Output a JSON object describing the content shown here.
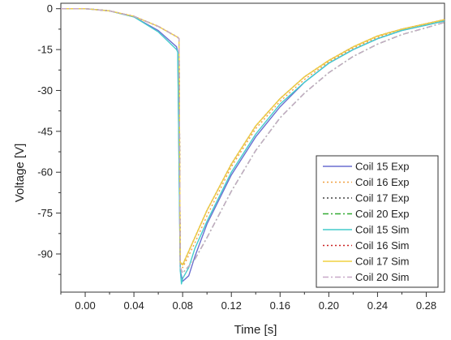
{
  "chart_data": {
    "type": "line",
    "title": "",
    "xlabel": "Time [s]",
    "ylabel": "Voltage [V]",
    "xlim": [
      -0.02,
      0.295
    ],
    "ylim": [
      -104,
      2
    ],
    "xticks": [
      0.0,
      0.04,
      0.08,
      0.12,
      0.16,
      0.2,
      0.24,
      0.28
    ],
    "xtick_labels": [
      "0.00",
      "0.04",
      "0.08",
      "0.12",
      "0.16",
      "0.20",
      "0.24",
      "0.28"
    ],
    "yticks": [
      0,
      -15,
      -30,
      -45,
      -60,
      -75,
      -90
    ],
    "ytick_labels": [
      "0",
      "-15",
      "-30",
      "-45",
      "-60",
      "-75",
      "-90"
    ],
    "grid": false,
    "legend_position": "bottom-right",
    "series": [
      {
        "name": "Coil 15 Exp",
        "color": "#6a6fd0",
        "dash": "solid",
        "x": [
          -0.02,
          0.0,
          0.02,
          0.04,
          0.06,
          0.075,
          0.076,
          0.078,
          0.08,
          0.085,
          0.09,
          0.1,
          0.12,
          0.14,
          0.16,
          0.18,
          0.2,
          0.22,
          0.24,
          0.26,
          0.28,
          0.295
        ],
        "y": [
          0,
          0,
          -0.8,
          -3,
          -8,
          -14,
          -16,
          -96,
          -100,
          -98,
          -91,
          -79,
          -61,
          -47,
          -36,
          -27,
          -20,
          -15,
          -11,
          -8,
          -6,
          -4.5
        ]
      },
      {
        "name": "Coil 16 Exp",
        "color": "#f0a040",
        "dash": "dot",
        "x": [
          -0.02,
          0.0,
          0.02,
          0.04,
          0.06,
          0.076,
          0.077,
          0.078,
          0.08,
          0.09,
          0.1,
          0.12,
          0.14,
          0.16,
          0.18,
          0.2,
          0.22,
          0.24,
          0.26,
          0.28,
          0.295
        ],
        "y": [
          0,
          0,
          -0.8,
          -2.8,
          -6.5,
          -10.5,
          -11,
          -93,
          -95,
          -86,
          -76,
          -58,
          -44,
          -34,
          -26,
          -19.5,
          -14.5,
          -10.5,
          -7.5,
          -5.5,
          -4
        ]
      },
      {
        "name": "Coil 17 Exp",
        "color": "#444444",
        "dash": "dot",
        "x": [
          -0.02,
          0.0,
          0.02,
          0.04,
          0.06,
          0.076,
          0.077,
          0.078,
          0.08,
          0.09,
          0.1,
          0.12,
          0.14,
          0.16,
          0.18,
          0.2,
          0.22,
          0.24,
          0.26,
          0.28,
          0.295
        ],
        "y": [
          0,
          0,
          -0.8,
          -2.8,
          -6.5,
          -10.5,
          -11,
          -93,
          -94,
          -84,
          -74,
          -57,
          -43,
          -33,
          -25,
          -19,
          -14,
          -10,
          -7.5,
          -5.5,
          -4
        ]
      },
      {
        "name": "Coil 20 Exp",
        "color": "#33aa33",
        "dash": "dashdot",
        "x": [
          -0.02,
          0.0,
          0.02,
          0.04,
          0.06,
          0.076,
          0.077,
          0.078,
          0.08,
          0.09,
          0.1,
          0.12,
          0.14,
          0.16,
          0.18,
          0.2,
          0.22,
          0.24,
          0.26,
          0.28,
          0.295
        ],
        "y": [
          0,
          0,
          -0.8,
          -2.8,
          -6.5,
          -10.5,
          -11,
          -95,
          -97,
          -92,
          -84,
          -67,
          -52,
          -40,
          -31,
          -23.5,
          -17.5,
          -13,
          -9.5,
          -7,
          -5
        ]
      },
      {
        "name": "Coil 15 Sim",
        "color": "#44cccc",
        "dash": "solid",
        "x": [
          -0.02,
          0.0,
          0.02,
          0.04,
          0.06,
          0.075,
          0.076,
          0.078,
          0.079,
          0.08,
          0.085,
          0.09,
          0.1,
          0.12,
          0.14,
          0.16,
          0.18,
          0.2,
          0.22,
          0.24,
          0.26,
          0.28,
          0.295
        ],
        "y": [
          0,
          0,
          -0.8,
          -3,
          -8.5,
          -15,
          -16,
          -96,
          -101,
          -99,
          -95,
          -88,
          -78,
          -60,
          -46,
          -35,
          -27,
          -20,
          -15,
          -11,
          -8,
          -6,
          -4.5
        ]
      },
      {
        "name": "Coil 16 Sim",
        "color": "#cc2222",
        "dash": "dot",
        "x": [
          -0.02,
          0.0,
          0.02,
          0.04,
          0.06,
          0.076,
          0.077,
          0.078,
          0.08,
          0.09,
          0.1,
          0.12,
          0.14,
          0.16,
          0.18,
          0.2,
          0.22,
          0.24,
          0.26,
          0.28,
          0.295
        ],
        "y": [
          0,
          0,
          -0.8,
          -2.8,
          -6.5,
          -10.5,
          -11,
          -94,
          -94,
          -84,
          -74,
          -57,
          -43,
          -33,
          -25,
          -19,
          -14,
          -10,
          -7.5,
          -5.5,
          -4
        ]
      },
      {
        "name": "Coil 17 Sim",
        "color": "#f0d040",
        "dash": "solid",
        "x": [
          -0.02,
          0.0,
          0.02,
          0.04,
          0.06,
          0.076,
          0.077,
          0.078,
          0.08,
          0.09,
          0.1,
          0.12,
          0.14,
          0.16,
          0.18,
          0.2,
          0.22,
          0.24,
          0.26,
          0.28,
          0.295
        ],
        "y": [
          0,
          0,
          -0.8,
          -2.8,
          -6.5,
          -10.5,
          -11,
          -93,
          -94,
          -84,
          -74,
          -57,
          -43,
          -33,
          -25,
          -19,
          -14,
          -10,
          -7.5,
          -5.5,
          -4
        ]
      },
      {
        "name": "Coil 20 Sim",
        "color": "#c8a8c8",
        "dash": "dashdot",
        "x": [
          -0.02,
          0.0,
          0.02,
          0.04,
          0.06,
          0.076,
          0.077,
          0.078,
          0.08,
          0.09,
          0.1,
          0.12,
          0.14,
          0.16,
          0.18,
          0.2,
          0.22,
          0.24,
          0.26,
          0.28,
          0.295
        ],
        "y": [
          0,
          0,
          -0.8,
          -2.8,
          -6.5,
          -10.5,
          -11,
          -95,
          -97,
          -92,
          -84,
          -67,
          -52,
          -40,
          -31,
          -23.5,
          -17.5,
          -13,
          -9.5,
          -7,
          -5
        ]
      }
    ]
  }
}
